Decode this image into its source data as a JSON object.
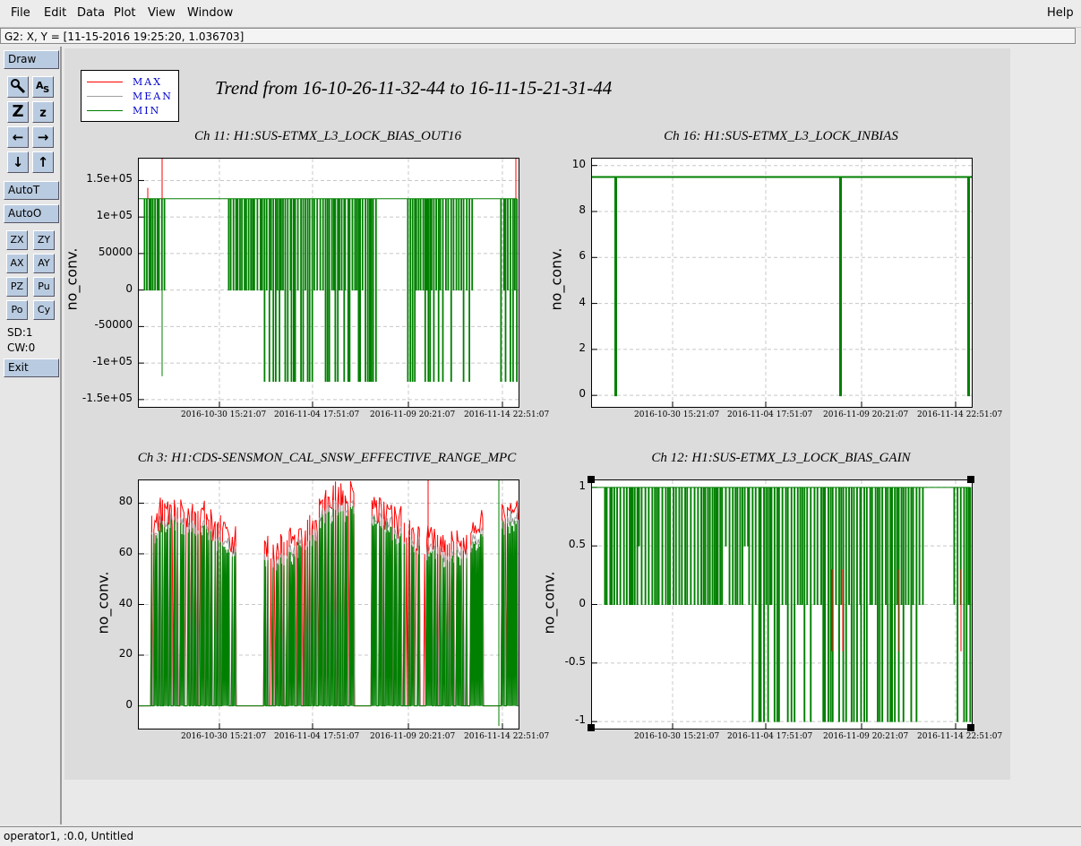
{
  "menu": {
    "items": [
      "File",
      "Edit",
      "Data",
      "Plot",
      "View",
      "Window"
    ],
    "help": "Help"
  },
  "status": {
    "cursor": "G2: X, Y = [11-15-2016 19:25:20, 1.036703]"
  },
  "toolbar": {
    "draw": "Draw",
    "autot": "AutoT",
    "autoo": "AutoO",
    "pairs": [
      [
        "ZX",
        "ZY"
      ],
      [
        "AX",
        "AY"
      ],
      [
        "PZ",
        "Pu"
      ],
      [
        "Po",
        "Cy"
      ]
    ],
    "sd": "SD:1",
    "cw": "CW:0",
    "exit": "Exit"
  },
  "legend": [
    {
      "label": "MAX",
      "color": "#ff0000"
    },
    {
      "label": "MEAN",
      "color": "#a0a0a0"
    },
    {
      "label": "MIN",
      "color": "#008000"
    }
  ],
  "trend_title": "Trend from 16-10-26-11-32-44 to 16-11-15-21-31-44",
  "footer": "operator1, :0.0, Untitled",
  "colors": {
    "max": "#ff0000",
    "mean": "#a0a0a0",
    "min": "#008000"
  },
  "chart_data": [
    {
      "type": "line",
      "title": "Ch 11: H1:SUS-ETMX_L3_LOCK_BIAS_OUT16",
      "ylabel": "no_conv.",
      "yticks": [
        "1.5e+05",
        "1e+05",
        "50000",
        "0",
        "-50000",
        "-1e+05",
        "-1.5e+05"
      ],
      "ylim": [
        -160000,
        180000
      ],
      "xticks": [
        "2016-10-30 15:21:07",
        "2016-11-04 17:51:07",
        "2016-11-09 20:21:07",
        "2016-11-14 22:51:07"
      ],
      "series": [
        {
          "name": "MAX"
        },
        {
          "name": "MEAN"
        },
        {
          "name": "MIN"
        }
      ],
      "high": 125000,
      "low": 0,
      "deep": -125000
    },
    {
      "type": "line",
      "title": "Ch 16: H1:SUS-ETMX_L3_LOCK_INBIAS",
      "ylabel": "no_conv.",
      "yticks": [
        "10",
        "8",
        "6",
        "4",
        "2",
        "0"
      ],
      "ylim": [
        -0.5,
        10.3
      ],
      "xticks": [
        "2016-10-30 15:21:07",
        "2016-11-04 17:51:07",
        "2016-11-09 20:21:07",
        "2016-11-14 22:51:07"
      ],
      "series": [
        {
          "name": "MAX"
        },
        {
          "name": "MEAN"
        },
        {
          "name": "MIN"
        }
      ],
      "level": 9.5
    },
    {
      "type": "line",
      "title": "Ch 3: H1:CDS-SENSMON_CAL_SNSW_EFFECTIVE_RANGE_MPC",
      "ylabel": "no_conv.",
      "yticks": [
        "80",
        "60",
        "40",
        "20",
        "0"
      ],
      "ylim": [
        -9,
        89
      ],
      "xticks": [
        "2016-10-30 15:21:07",
        "2016-11-04 17:51:07",
        "2016-11-09 20:21:07",
        "2016-11-14 22:51:07"
      ],
      "series": [
        {
          "name": "MAX"
        },
        {
          "name": "MEAN"
        },
        {
          "name": "MIN"
        }
      ]
    },
    {
      "type": "line",
      "title": "Ch 12: H1:SUS-ETMX_L3_LOCK_BIAS_GAIN",
      "ylabel": "no_conv.",
      "yticks": [
        "1",
        "0.5",
        "0",
        "-0.5",
        "-1"
      ],
      "ylim": [
        -1.06,
        1.06
      ],
      "xticks": [
        "2016-10-30 15:21:07",
        "2016-11-04 17:51:07",
        "2016-11-09 20:21:07",
        "2016-11-14 22:51:07"
      ],
      "series": [
        {
          "name": "MAX"
        },
        {
          "name": "MEAN"
        },
        {
          "name": "MIN"
        }
      ]
    }
  ]
}
